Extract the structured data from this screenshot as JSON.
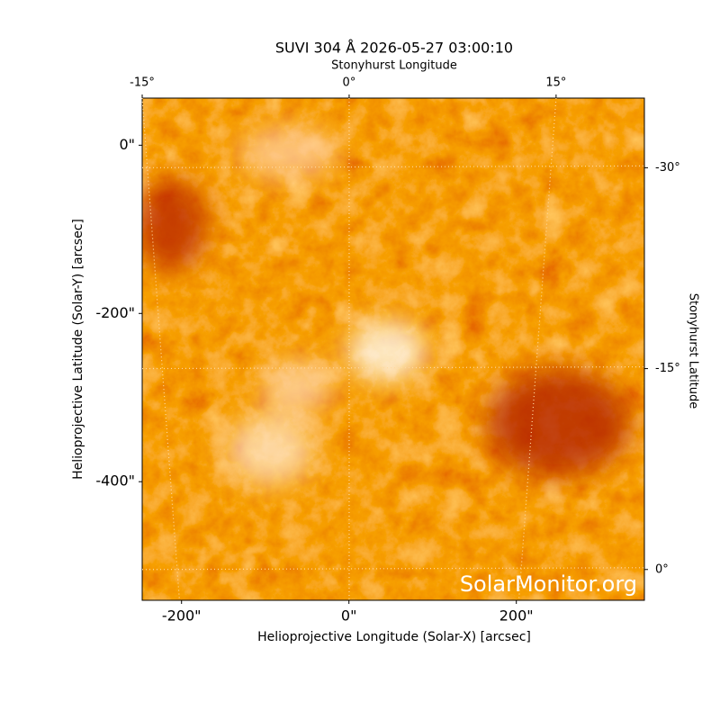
{
  "chart_data": {
    "type": "image",
    "title": "SUVI 304 Å 2026-05-27 03:00:10",
    "xlabel": "Helioprojective Longitude (Solar-X) [arcsec]",
    "ylabel": "Helioprojective Latitude (Solar-Y) [arcsec]",
    "x2label": "Stonyhurst Longitude",
    "y2label": "Stonyhurst Latitude",
    "watermark": "SolarMonitor.org",
    "xlim": [
      -247,
      353
    ],
    "xticks": [
      {
        "value": -200,
        "label": "-200\""
      },
      {
        "value": 0,
        "label": "0\""
      },
      {
        "value": 200,
        "label": "200\""
      }
    ],
    "ylim": [
      -541,
      56
    ],
    "yticks": [
      {
        "value": 0,
        "label": "0\""
      },
      {
        "value": -200,
        "label": "-200\""
      },
      {
        "value": -400,
        "label": "-400\""
      }
    ],
    "x2lim": [
      -15,
      21.4
    ],
    "x2ticks": [
      {
        "value": -15,
        "label": "-15°"
      },
      {
        "value": 0,
        "label": "0°"
      },
      {
        "value": 15,
        "label": "15°"
      }
    ],
    "y2lim": [
      2.3,
      -35.2
    ],
    "y2ticks": [
      {
        "value": 0,
        "label": "0°"
      },
      {
        "value": -15,
        "label": "-15°"
      },
      {
        "value": -30,
        "label": "-30°"
      }
    ],
    "grid": true
  }
}
